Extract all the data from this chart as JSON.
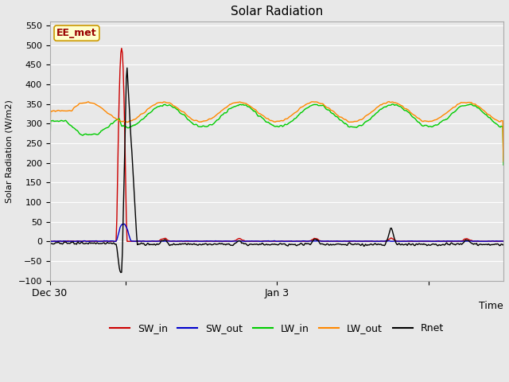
{
  "title": "Solar Radiation",
  "xlabel": "Time",
  "ylabel": "Solar Radiation (W/m2)",
  "ylim": [
    -100,
    560
  ],
  "yticks": [
    -100,
    -50,
    0,
    50,
    100,
    150,
    200,
    250,
    300,
    350,
    400,
    450,
    500,
    550
  ],
  "bg_color": "#e8e8e8",
  "plot_bg_color": "#e8e8e8",
  "annotation_box": "EE_met",
  "annotation_box_color": "#ffffcc",
  "annotation_box_edge_color": "#cc9900",
  "annotation_text_color": "#990000",
  "colors": {
    "SW_in": "#cc0000",
    "SW_out": "#0000cc",
    "LW_in": "#00cc00",
    "LW_out": "#ff8800",
    "Rnet": "#000000"
  },
  "xtick_positions": [
    0,
    96,
    288,
    480
  ],
  "xtick_labels": [
    "Dec 30",
    "",
    "Jan 3",
    ""
  ],
  "N": 576,
  "points_per_day": 96
}
